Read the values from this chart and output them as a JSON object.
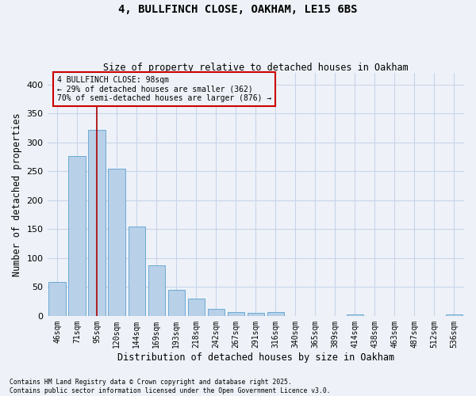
{
  "title": "4, BULLFINCH CLOSE, OAKHAM, LE15 6BS",
  "subtitle": "Size of property relative to detached houses in Oakham",
  "xlabel": "Distribution of detached houses by size in Oakham",
  "ylabel": "Number of detached properties",
  "categories": [
    "46sqm",
    "71sqm",
    "95sqm",
    "120sqm",
    "144sqm",
    "169sqm",
    "193sqm",
    "218sqm",
    "242sqm",
    "267sqm",
    "291sqm",
    "316sqm",
    "340sqm",
    "365sqm",
    "389sqm",
    "414sqm",
    "438sqm",
    "463sqm",
    "487sqm",
    "512sqm",
    "536sqm"
  ],
  "values": [
    58,
    276,
    322,
    254,
    154,
    88,
    45,
    30,
    12,
    6,
    5,
    6,
    0,
    0,
    0,
    3,
    0,
    0,
    0,
    0,
    3
  ],
  "bar_color": "#b8d0e8",
  "bar_edge_color": "#6aaad4",
  "grid_color": "#c8d4e8",
  "vline_x": 2,
  "vline_color": "#aa0000",
  "annotation_text": "4 BULLFINCH CLOSE: 98sqm\n← 29% of detached houses are smaller (362)\n70% of semi-detached houses are larger (876) →",
  "annotation_box_color": "#cc0000",
  "ylim": [
    0,
    420
  ],
  "yticks": [
    0,
    50,
    100,
    150,
    200,
    250,
    300,
    350,
    400
  ],
  "footer_line1": "Contains HM Land Registry data © Crown copyright and database right 2025.",
  "footer_line2": "Contains public sector information licensed under the Open Government Licence v3.0.",
  "background_color": "#eef2f8"
}
